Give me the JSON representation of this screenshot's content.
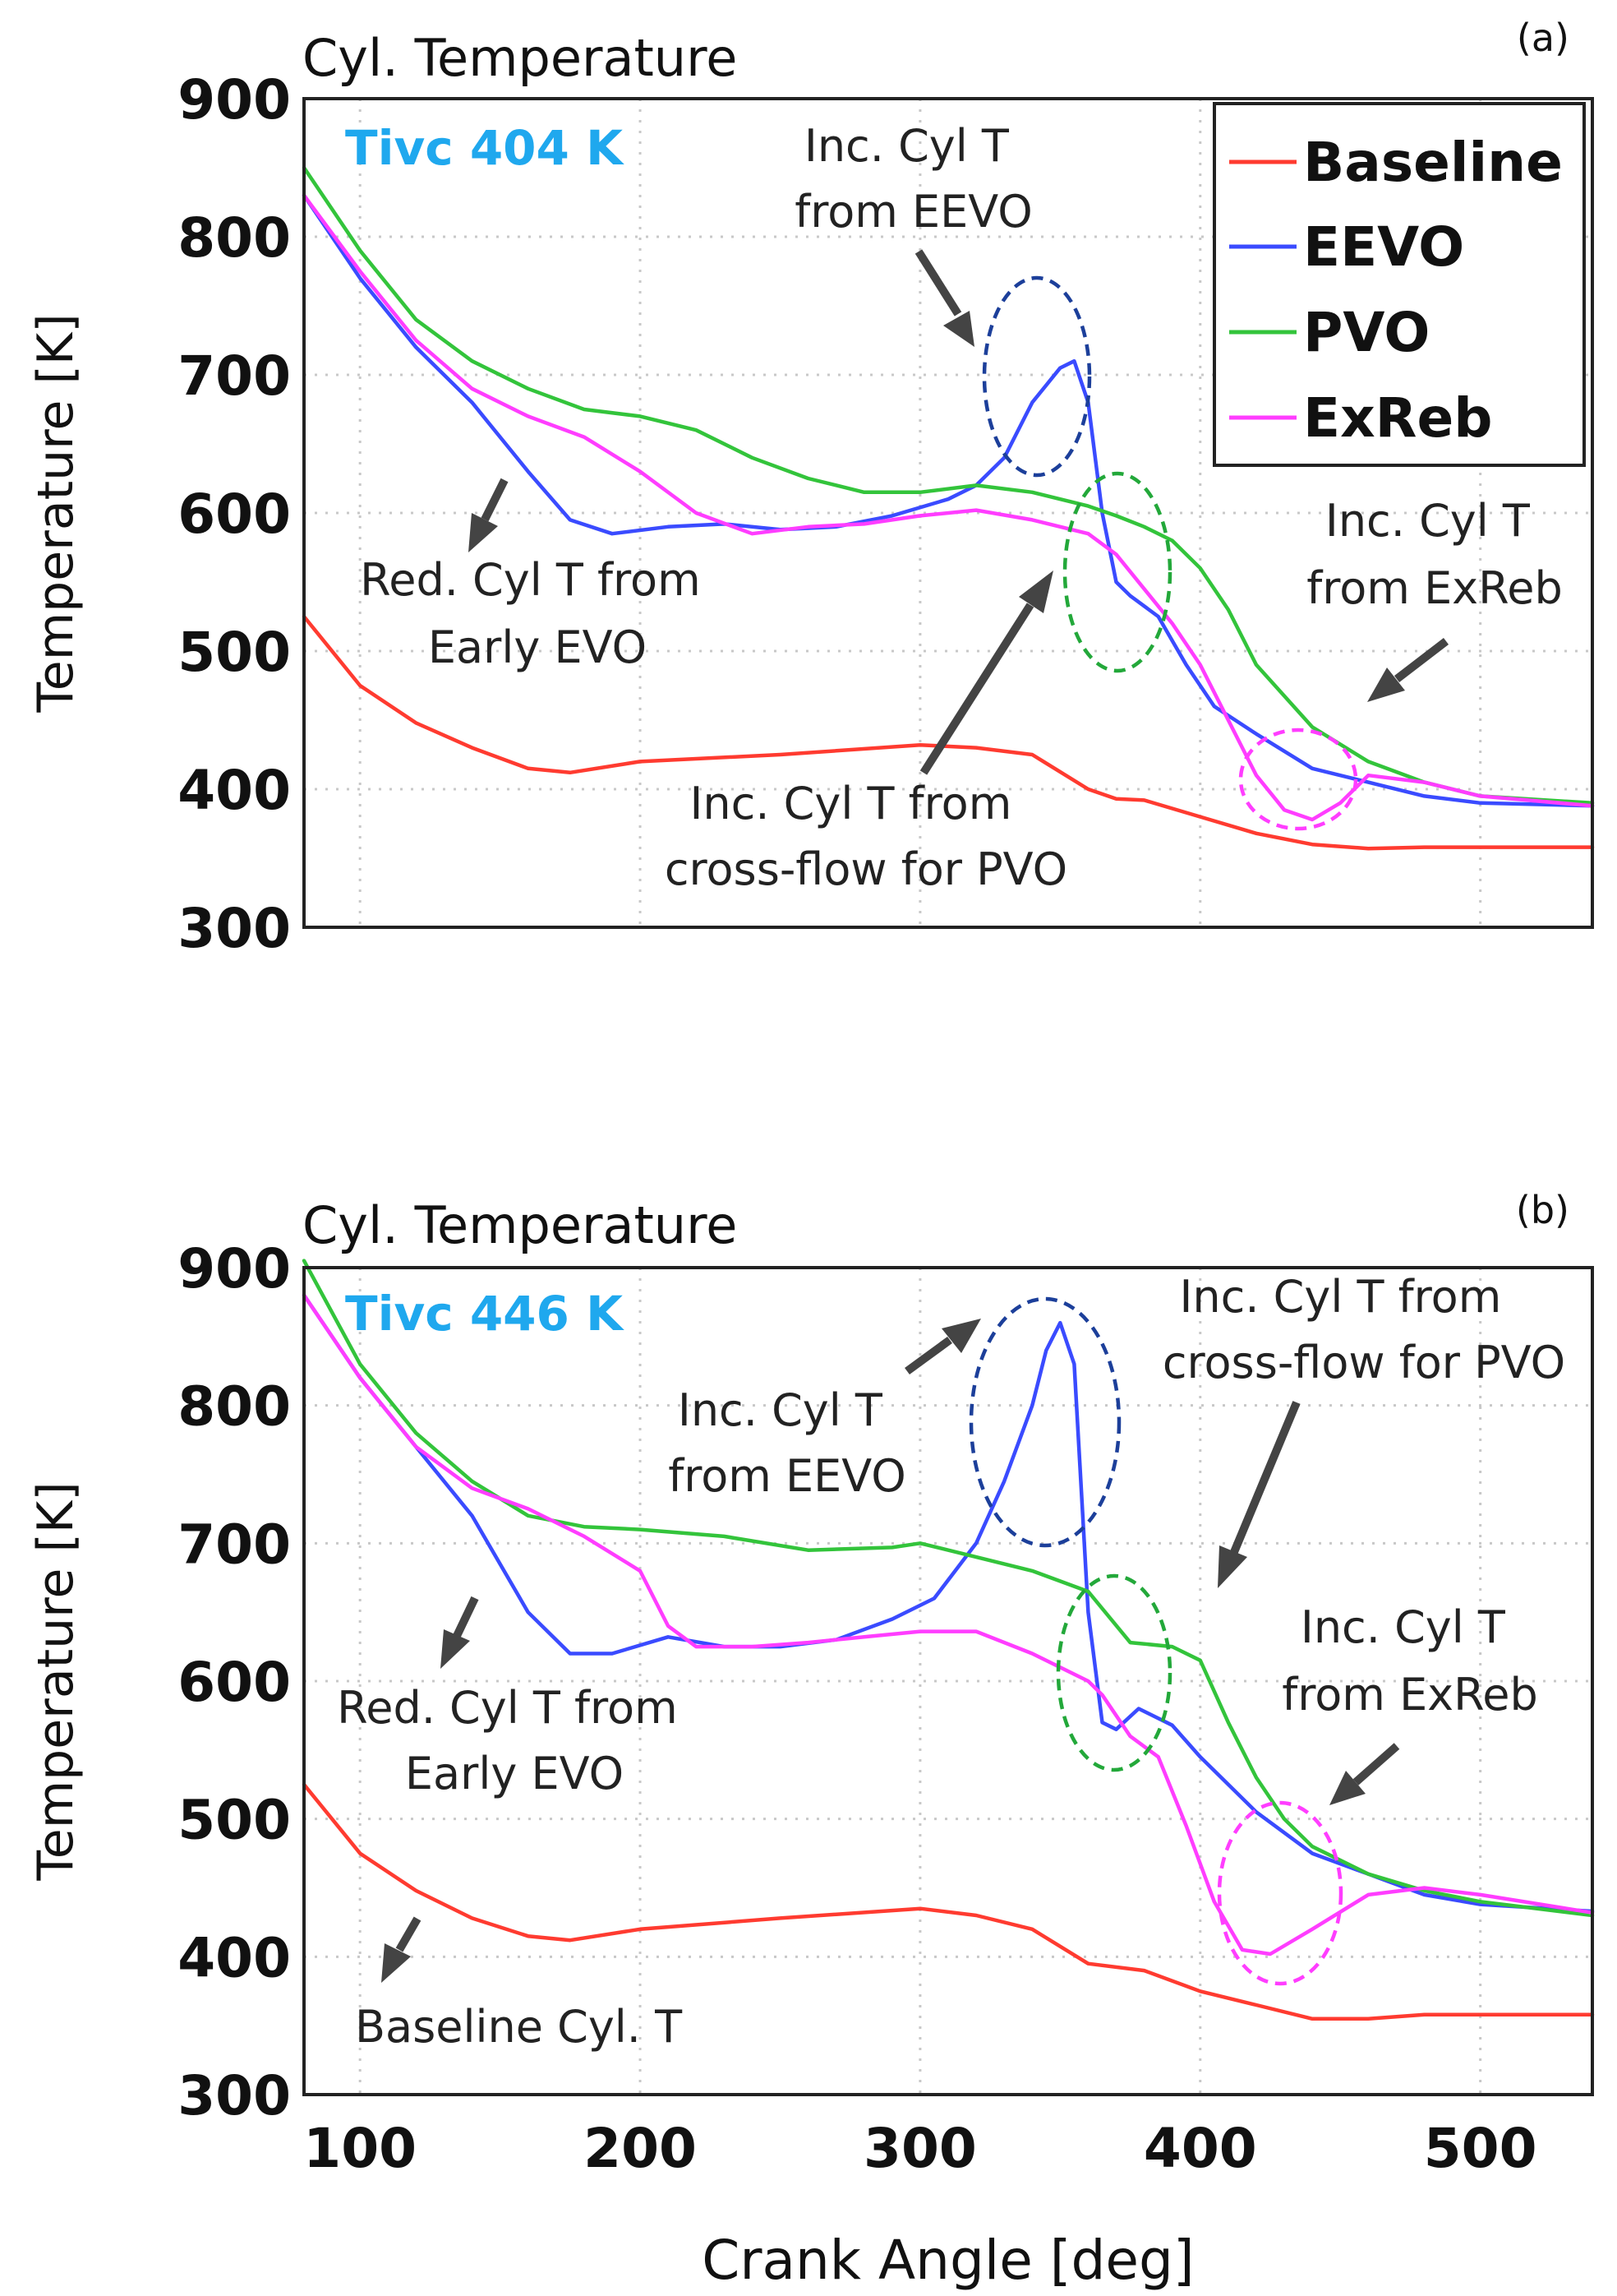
{
  "colors": {
    "Baseline": "#ff3b30",
    "EEVO": "#3a4bff",
    "PVO": "#33c43b",
    "ExReb": "#ff3dff",
    "ellipse_blue": "#1c3f9a",
    "ellipse_green": "#23a83a",
    "ellipse_magenta": "#ff3dff",
    "tivc": "#1fa8ee"
  },
  "figure": {
    "xlabel": "Crank Angle [deg]",
    "xticks": [
      100,
      200,
      300,
      400,
      500
    ]
  },
  "chart_data": [
    {
      "type": "line",
      "panel_label": "(a)",
      "title": "Cyl. Temperature",
      "subtitle": "Tivc 404 K",
      "xlabel": "",
      "ylabel": "Temperature [K]",
      "xlim": [
        80,
        540
      ],
      "ylim": [
        300,
        900
      ],
      "yticks": [
        300,
        400,
        500,
        600,
        700,
        800,
        900
      ],
      "grid": true,
      "legend": {
        "position": "top-right",
        "entries": [
          "Baseline",
          "EEVO",
          "PVO",
          "ExReb"
        ]
      },
      "series": [
        {
          "name": "Baseline",
          "points": [
            [
              80,
              525
            ],
            [
              100,
              475
            ],
            [
              120,
              448
            ],
            [
              140,
              430
            ],
            [
              160,
              415
            ],
            [
              175,
              412
            ],
            [
              200,
              420
            ],
            [
              250,
              425
            ],
            [
              300,
              432
            ],
            [
              320,
              430
            ],
            [
              340,
              425
            ],
            [
              360,
              400
            ],
            [
              370,
              393
            ],
            [
              380,
              392
            ],
            [
              400,
              380
            ],
            [
              420,
              368
            ],
            [
              440,
              360
            ],
            [
              460,
              357
            ],
            [
              480,
              358
            ],
            [
              500,
              358
            ],
            [
              540,
              358
            ]
          ]
        },
        {
          "name": "EEVO",
          "points": [
            [
              80,
              830
            ],
            [
              100,
              770
            ],
            [
              120,
              720
            ],
            [
              140,
              680
            ],
            [
              160,
              630
            ],
            [
              175,
              595
            ],
            [
              190,
              585
            ],
            [
              210,
              590
            ],
            [
              230,
              592
            ],
            [
              250,
              588
            ],
            [
              270,
              590
            ],
            [
              290,
              598
            ],
            [
              310,
              610
            ],
            [
              320,
              620
            ],
            [
              330,
              640
            ],
            [
              340,
              680
            ],
            [
              350,
              705
            ],
            [
              355,
              710
            ],
            [
              360,
              680
            ],
            [
              365,
              600
            ],
            [
              370,
              550
            ],
            [
              375,
              540
            ],
            [
              385,
              525
            ],
            [
              395,
              490
            ],
            [
              405,
              460
            ],
            [
              420,
              440
            ],
            [
              440,
              415
            ],
            [
              460,
              405
            ],
            [
              480,
              395
            ],
            [
              500,
              390
            ],
            [
              540,
              388
            ]
          ]
        },
        {
          "name": "PVO",
          "points": [
            [
              80,
              850
            ],
            [
              100,
              790
            ],
            [
              120,
              740
            ],
            [
              140,
              710
            ],
            [
              160,
              690
            ],
            [
              180,
              675
            ],
            [
              200,
              670
            ],
            [
              220,
              660
            ],
            [
              240,
              640
            ],
            [
              260,
              625
            ],
            [
              280,
              615
            ],
            [
              300,
              615
            ],
            [
              320,
              620
            ],
            [
              340,
              615
            ],
            [
              360,
              605
            ],
            [
              370,
              598
            ],
            [
              380,
              590
            ],
            [
              390,
              580
            ],
            [
              400,
              560
            ],
            [
              410,
              530
            ],
            [
              420,
              490
            ],
            [
              440,
              445
            ],
            [
              460,
              420
            ],
            [
              480,
              405
            ],
            [
              500,
              395
            ],
            [
              540,
              390
            ]
          ]
        },
        {
          "name": "ExReb",
          "points": [
            [
              80,
              830
            ],
            [
              100,
              775
            ],
            [
              120,
              725
            ],
            [
              140,
              690
            ],
            [
              160,
              670
            ],
            [
              180,
              655
            ],
            [
              200,
              630
            ],
            [
              220,
              600
            ],
            [
              240,
              585
            ],
            [
              260,
              590
            ],
            [
              280,
              592
            ],
            [
              300,
              598
            ],
            [
              320,
              602
            ],
            [
              340,
              595
            ],
            [
              360,
              585
            ],
            [
              370,
              570
            ],
            [
              380,
              545
            ],
            [
              390,
              520
            ],
            [
              400,
              490
            ],
            [
              410,
              450
            ],
            [
              420,
              410
            ],
            [
              430,
              385
            ],
            [
              440,
              378
            ],
            [
              450,
              390
            ],
            [
              460,
              410
            ],
            [
              480,
              405
            ],
            [
              500,
              395
            ],
            [
              540,
              388
            ]
          ]
        }
      ],
      "annotations": [
        {
          "lines": [
            "Inc. Cyl T",
            "from EEVO"
          ]
        },
        {
          "lines": [
            "Red. Cyl T from",
            "Early EVO"
          ]
        },
        {
          "lines": [
            "Inc. Cyl T",
            "from ExReb"
          ]
        },
        {
          "lines": [
            "Inc. Cyl T from",
            "cross-flow for PVO"
          ]
        }
      ]
    },
    {
      "type": "line",
      "panel_label": "(b)",
      "title": "Cyl. Temperature",
      "subtitle": "Tivc 446 K",
      "xlabel": "Crank Angle [deg]",
      "ylabel": "Temperature [K]",
      "xlim": [
        80,
        540
      ],
      "ylim": [
        300,
        900
      ],
      "yticks": [
        300,
        400,
        500,
        600,
        700,
        800,
        900
      ],
      "grid": true,
      "series": [
        {
          "name": "Baseline",
          "points": [
            [
              80,
              525
            ],
            [
              100,
              475
            ],
            [
              120,
              448
            ],
            [
              140,
              428
            ],
            [
              160,
              415
            ],
            [
              175,
              412
            ],
            [
              200,
              420
            ],
            [
              250,
              428
            ],
            [
              300,
              435
            ],
            [
              320,
              430
            ],
            [
              340,
              420
            ],
            [
              360,
              395
            ],
            [
              380,
              390
            ],
            [
              400,
              375
            ],
            [
              420,
              365
            ],
            [
              440,
              355
            ],
            [
              460,
              355
            ],
            [
              480,
              358
            ],
            [
              500,
              358
            ],
            [
              540,
              358
            ]
          ]
        },
        {
          "name": "EEVO",
          "points": [
            [
              80,
              880
            ],
            [
              100,
              820
            ],
            [
              120,
              770
            ],
            [
              140,
              720
            ],
            [
              160,
              650
            ],
            [
              175,
              620
            ],
            [
              190,
              620
            ],
            [
              210,
              632
            ],
            [
              230,
              625
            ],
            [
              250,
              625
            ],
            [
              270,
              630
            ],
            [
              290,
              645
            ],
            [
              305,
              660
            ],
            [
              320,
              700
            ],
            [
              330,
              745
            ],
            [
              340,
              800
            ],
            [
              345,
              840
            ],
            [
              350,
              860
            ],
            [
              355,
              830
            ],
            [
              360,
              650
            ],
            [
              365,
              570
            ],
            [
              370,
              565
            ],
            [
              378,
              580
            ],
            [
              390,
              568
            ],
            [
              400,
              545
            ],
            [
              420,
              505
            ],
            [
              440,
              475
            ],
            [
              460,
              460
            ],
            [
              480,
              445
            ],
            [
              500,
              438
            ],
            [
              540,
              433
            ]
          ]
        },
        {
          "name": "PVO",
          "points": [
            [
              80,
              905
            ],
            [
              100,
              830
            ],
            [
              120,
              780
            ],
            [
              140,
              745
            ],
            [
              160,
              720
            ],
            [
              180,
              712
            ],
            [
              200,
              710
            ],
            [
              230,
              705
            ],
            [
              260,
              695
            ],
            [
              290,
              697
            ],
            [
              300,
              700
            ],
            [
              320,
              690
            ],
            [
              340,
              680
            ],
            [
              360,
              665
            ],
            [
              375,
              628
            ],
            [
              390,
              625
            ],
            [
              400,
              615
            ],
            [
              410,
              570
            ],
            [
              420,
              530
            ],
            [
              430,
              500
            ],
            [
              440,
              480
            ],
            [
              460,
              460
            ],
            [
              480,
              448
            ],
            [
              500,
              440
            ],
            [
              540,
              430
            ]
          ]
        },
        {
          "name": "ExReb",
          "points": [
            [
              80,
              880
            ],
            [
              100,
              820
            ],
            [
              120,
              770
            ],
            [
              140,
              740
            ],
            [
              160,
              725
            ],
            [
              180,
              705
            ],
            [
              200,
              680
            ],
            [
              210,
              640
            ],
            [
              220,
              625
            ],
            [
              240,
              625
            ],
            [
              260,
              628
            ],
            [
              280,
              632
            ],
            [
              300,
              636
            ],
            [
              320,
              636
            ],
            [
              340,
              620
            ],
            [
              360,
              600
            ],
            [
              365,
              590
            ],
            [
              375,
              560
            ],
            [
              385,
              545
            ],
            [
              395,
              495
            ],
            [
              405,
              440
            ],
            [
              415,
              405
            ],
            [
              425,
              402
            ],
            [
              440,
              420
            ],
            [
              460,
              445
            ],
            [
              480,
              450
            ],
            [
              500,
              445
            ],
            [
              540,
              432
            ]
          ]
        }
      ],
      "annotations": [
        {
          "lines": [
            "Inc. Cyl T",
            "from EEVO"
          ]
        },
        {
          "lines": [
            "Inc. Cyl T from",
            "cross-flow for PVO"
          ]
        },
        {
          "lines": [
            "Red. Cyl T from",
            "Early EVO"
          ]
        },
        {
          "lines": [
            "Inc. Cyl T",
            "from ExReb"
          ]
        },
        {
          "lines": [
            "Baseline Cyl. T"
          ]
        }
      ]
    }
  ]
}
